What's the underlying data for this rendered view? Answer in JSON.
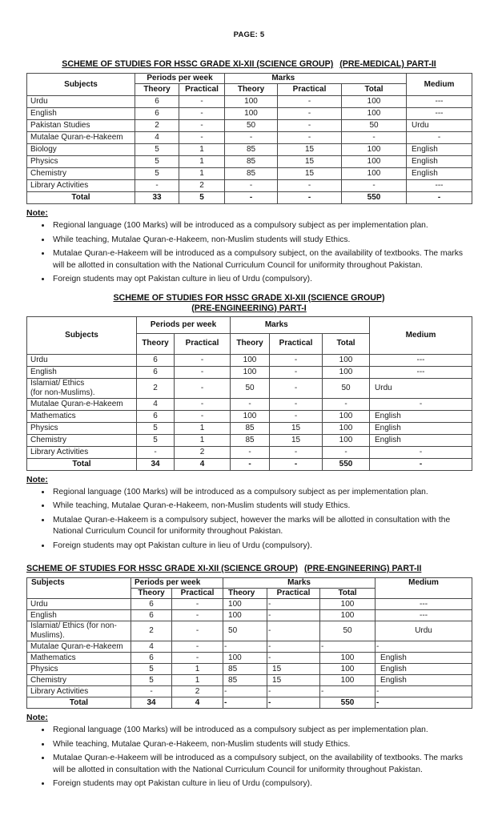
{
  "page_label": "PAGE: 5",
  "sections": [
    {
      "title": {
        "main": "SCHEME OF STUDIES FOR HSSC GRADE XI-XII (SCIENCE GROUP)",
        "part": "(PRE-MEDICAL) PART-II"
      },
      "table": {
        "headers": {
          "subjects": "Subjects",
          "periods": "Periods per week",
          "marks": "Marks",
          "theory_periods": "Theory",
          "practical_periods": "Practical",
          "theory_marks": "Theory",
          "practical_marks": "Practical",
          "total": "Total",
          "medium": "Medium"
        },
        "rows": [
          {
            "subject": "Urdu",
            "values": [
              "6",
              "-",
              "100",
              "-",
              "100",
              "---"
            ]
          },
          {
            "subject": "English",
            "values": [
              "6",
              "-",
              "100",
              "-",
              "100",
              "---"
            ]
          },
          {
            "subject": "Pakistan Studies",
            "values": [
              "2",
              "-",
              "50",
              "-",
              "50",
              "Urdu"
            ]
          },
          {
            "subject": "Mutalae Quran-e-Hakeem",
            "values": [
              "4",
              "-",
              "-",
              "-",
              "-",
              "-"
            ]
          },
          {
            "subject": "Biology",
            "values": [
              "5",
              "1",
              "85",
              "15",
              "100",
              "English"
            ]
          },
          {
            "subject": "Physics",
            "values": [
              "5",
              "1",
              "85",
              "15",
              "100",
              "English"
            ]
          },
          {
            "subject": "Chemistry",
            "values": [
              "5",
              "1",
              "85",
              "15",
              "100",
              "English"
            ]
          },
          {
            "subject": "Library Activities",
            "values": [
              "-",
              "2",
              "-",
              "-",
              "-",
              "---"
            ]
          }
        ],
        "total_row": {
          "label": "Total",
          "values": [
            "33",
            "5",
            "-",
            "-",
            "550",
            "-"
          ]
        }
      },
      "note": {
        "heading": "Note:",
        "bullets": [
          "Regional language (100 Marks) will be introduced as a compulsory subject as per implementation plan.",
          "While teaching, Mutalae Quran-e-Hakeem, non-Muslim students will study Ethics.",
          "Mutalae Quran-e-Hakeem will be introduced as a compulsory subject, on the availability of textbooks. The marks will be allotted in consultation with the National Curriculum Council for uniformity throughout Pakistan.",
          "Foreign students may opt Pakistan culture in lieu of Urdu (compulsory)."
        ]
      }
    },
    {
      "title": {
        "main": "SCHEME OF STUDIES FOR HSSC GRADE XI-XII (SCIENCE GROUP)",
        "part": "(PRE-ENGINEERING) PART-I"
      },
      "table": {
        "headers": {
          "subjects": "Subjects",
          "periods": "Periods per week",
          "marks": "Marks",
          "theory_periods": "Theory",
          "practical_periods": "Practical",
          "theory_marks": "Theory",
          "practical_marks": "Practical",
          "total": "Total",
          "medium": "Medium"
        },
        "rows": [
          {
            "subject": "Urdu",
            "values": [
              "6",
              "-",
              "100",
              "-",
              "100",
              "---"
            ]
          },
          {
            "subject": "English",
            "values": [
              "6",
              "-",
              "100",
              "-",
              "100",
              "---"
            ]
          },
          {
            "subject": "Islamiat/ Ethics\n(for non-Muslims).",
            "values": [
              "2",
              "-",
              "50",
              "-",
              "50",
              "Urdu"
            ]
          },
          {
            "subject": "Mutalae Quran-e-Hakeem",
            "values": [
              "4",
              "-",
              "-",
              "-",
              "-",
              "-"
            ]
          },
          {
            "subject": "Mathematics",
            "values": [
              "6",
              "-",
              "100",
              "-",
              "100",
              "English"
            ]
          },
          {
            "subject": "Physics",
            "values": [
              "5",
              "1",
              "85",
              "15",
              "100",
              "English"
            ]
          },
          {
            "subject": "Chemistry",
            "values": [
              "5",
              "1",
              "85",
              "15",
              "100",
              "English"
            ]
          },
          {
            "subject": "Library Activities",
            "values": [
              "-",
              "2",
              "-",
              "-",
              "-",
              "-"
            ]
          }
        ],
        "total_row": {
          "label": "Total",
          "values": [
            "34",
            "4",
            "-",
            "-",
            "550",
            "-"
          ]
        }
      },
      "note": {
        "heading": "Note:",
        "bullets": [
          "Regional language (100 Marks) will be introduced as a compulsory subject as per implementation plan.",
          "While teaching, Mutalae Quran-e-Hakeem, non-Muslim students will study Ethics.",
          "Mutalae Quran-e-Hakeem is a compulsory subject, however the  marks will be allotted in consultation with the National Curriculum Council for uniformity throughout Pakistan.",
          "Foreign students may opt Pakistan culture in lieu of Urdu (compulsory)."
        ]
      }
    },
    {
      "title": {
        "main": "SCHEME OF STUDIES FOR HSSC GRADE XI-XII (SCIENCE GROUP)",
        "part": "(PRE-ENGINEERING) PART-II"
      },
      "table": {
        "headers": {
          "subjects": "Subjects",
          "periods": "Periods per week",
          "marks": "Marks",
          "theory_periods": "Theory",
          "practical_periods": "Practical",
          "theory_marks": "Theory",
          "practical_marks": "Practical",
          "total": "Total",
          "medium": "Medium"
        },
        "rows": [
          {
            "subject": "Urdu",
            "values": [
              "6",
              "-",
              "100",
              "-",
              "100",
              "---"
            ]
          },
          {
            "subject": "English",
            "values": [
              "6",
              "-",
              "100",
              "-",
              "100",
              "---"
            ]
          },
          {
            "subject": "Islamiat/ Ethics (for non-\nMuslims).",
            "values": [
              "2",
              "-",
              "50",
              "-",
              "50",
              "Urdu"
            ]
          },
          {
            "subject": "Mutalae Quran-e-Hakeem",
            "values": [
              "4",
              "-",
              "-",
              "-",
              "-",
              "-"
            ]
          },
          {
            "subject": "Mathematics",
            "values": [
              "6",
              "-",
              "100",
              "-",
              "100",
              "English"
            ]
          },
          {
            "subject": "Physics",
            "values": [
              "5",
              "1",
              "85",
              "15",
              "100",
              "English"
            ]
          },
          {
            "subject": "Chemistry",
            "values": [
              "5",
              "1",
              "85",
              "15",
              "100",
              "English"
            ]
          },
          {
            "subject": "Library Activities",
            "values": [
              "-",
              "2",
              "-",
              "-",
              "-",
              "-"
            ]
          }
        ],
        "total_row": {
          "label": "Total",
          "values": [
            "34",
            "4",
            "-",
            "-",
            "550",
            "-"
          ]
        }
      },
      "note": {
        "heading": "Note:",
        "bullets": [
          "Regional language (100 Marks) will be introduced as a compulsory subject as per implementation plan.",
          "While teaching, Mutalae Quran-e-Hakeem, non-Muslim students will study Ethics.",
          "Mutalae Quran-e-Hakeem will be introduced as a compulsory subject, on the availability of textbooks. The marks will be allotted in consultation with the National Curriculum Council for uniformity throughout Pakistan.",
          "Foreign students may opt Pakistan culture in lieu of Urdu (compulsory)."
        ]
      }
    }
  ]
}
